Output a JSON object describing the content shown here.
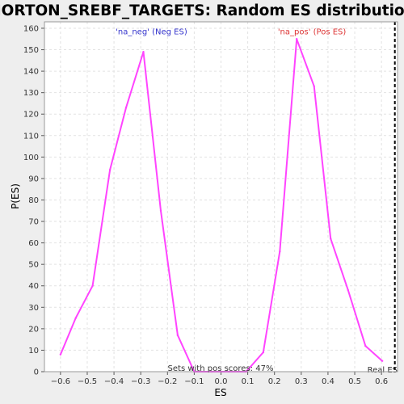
{
  "chart_data": {
    "type": "line",
    "title": "HORTON_SREBF_TARGETS: Random ES distribution",
    "xlabel": "ES",
    "ylabel": "P(ES)",
    "xlim": [
      -0.66,
      0.66
    ],
    "ylim": [
      0,
      163
    ],
    "x_ticks": [
      -0.6,
      -0.5,
      -0.4,
      -0.3,
      -0.2,
      -0.1,
      0.0,
      0.1,
      0.2,
      0.3,
      0.4,
      0.5,
      0.6
    ],
    "x_tick_labels": [
      "−0.6",
      "−0.5",
      "−0.4",
      "−0.3",
      "−0.2",
      "−0.1",
      "0.0",
      "0.1",
      "0.2",
      "0.3",
      "0.4",
      "0.5",
      "0.6"
    ],
    "y_ticks": [
      0,
      10,
      20,
      30,
      40,
      50,
      60,
      70,
      80,
      90,
      100,
      110,
      120,
      130,
      140,
      150,
      160
    ],
    "grid": true,
    "line_color": "#ff44ff",
    "series": [
      {
        "x": [
          -0.6,
          -0.543,
          -0.48,
          -0.415,
          -0.355,
          -0.29,
          -0.225,
          -0.162,
          -0.1,
          -0.035,
          0.03,
          0.094,
          0.158,
          0.22,
          0.283,
          0.348,
          0.41,
          0.475,
          0.54,
          0.603
        ],
        "y": [
          8,
          25,
          40,
          94,
          123,
          149,
          75,
          17,
          0,
          0,
          0,
          0,
          9,
          56,
          155,
          133,
          62,
          38,
          12,
          5
        ]
      }
    ],
    "annotations": [
      {
        "text": "'na_neg' (Neg ES)",
        "x": -0.26,
        "y": 159,
        "color": "#3333cc"
      },
      {
        "text": "'na_pos' (Pos ES)",
        "x": 0.34,
        "y": 159,
        "color": "#dd3333"
      }
    ],
    "real_es_x": 0.65,
    "real_es_label": "Real ES",
    "footer_text": "Sets with pos scores: 47%"
  }
}
